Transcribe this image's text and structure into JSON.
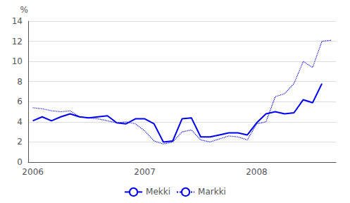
{
  "chart_data": {
    "type": "line",
    "ylabel": "%",
    "categories": [
      "2006",
      null,
      null,
      null,
      null,
      null,
      null,
      null,
      null,
      null,
      null,
      null,
      "2007",
      null,
      null,
      null,
      null,
      null,
      null,
      null,
      null,
      null,
      null,
      null,
      "2008",
      null,
      null,
      null,
      null,
      null,
      null,
      null,
      null
    ],
    "series": [
      {
        "name": "Mekki",
        "color": "#0000EE",
        "line_style": "solid",
        "values": [
          4.1,
          4.5,
          4.1,
          4.5,
          4.8,
          4.5,
          4.4,
          4.5,
          4.6,
          3.9,
          3.8,
          4.3,
          4.3,
          3.8,
          2.0,
          2.1,
          4.3,
          4.4,
          2.5,
          2.5,
          2.7,
          2.9,
          2.9,
          2.7,
          3.9,
          4.8,
          5.0,
          4.8,
          4.9,
          6.2,
          5.9,
          7.8,
          null
        ]
      },
      {
        "name": "Markki",
        "color": "#0000EE",
        "line_style": "dotted",
        "values": [
          5.4,
          5.3,
          5.1,
          5.0,
          5.1,
          4.5,
          4.4,
          4.3,
          4.1,
          3.9,
          4.0,
          3.8,
          3.1,
          2.1,
          1.8,
          2.0,
          3.0,
          3.2,
          2.2,
          2.0,
          2.3,
          2.6,
          2.5,
          2.2,
          3.8,
          4.0,
          6.5,
          6.8,
          7.8,
          10.0,
          9.4,
          12.0,
          12.1
        ]
      }
    ],
    "ylim": [
      0,
      14
    ],
    "yticks": [
      0,
      2,
      4,
      6,
      8,
      10,
      12,
      14
    ],
    "grid": true,
    "legend": "bottom"
  }
}
